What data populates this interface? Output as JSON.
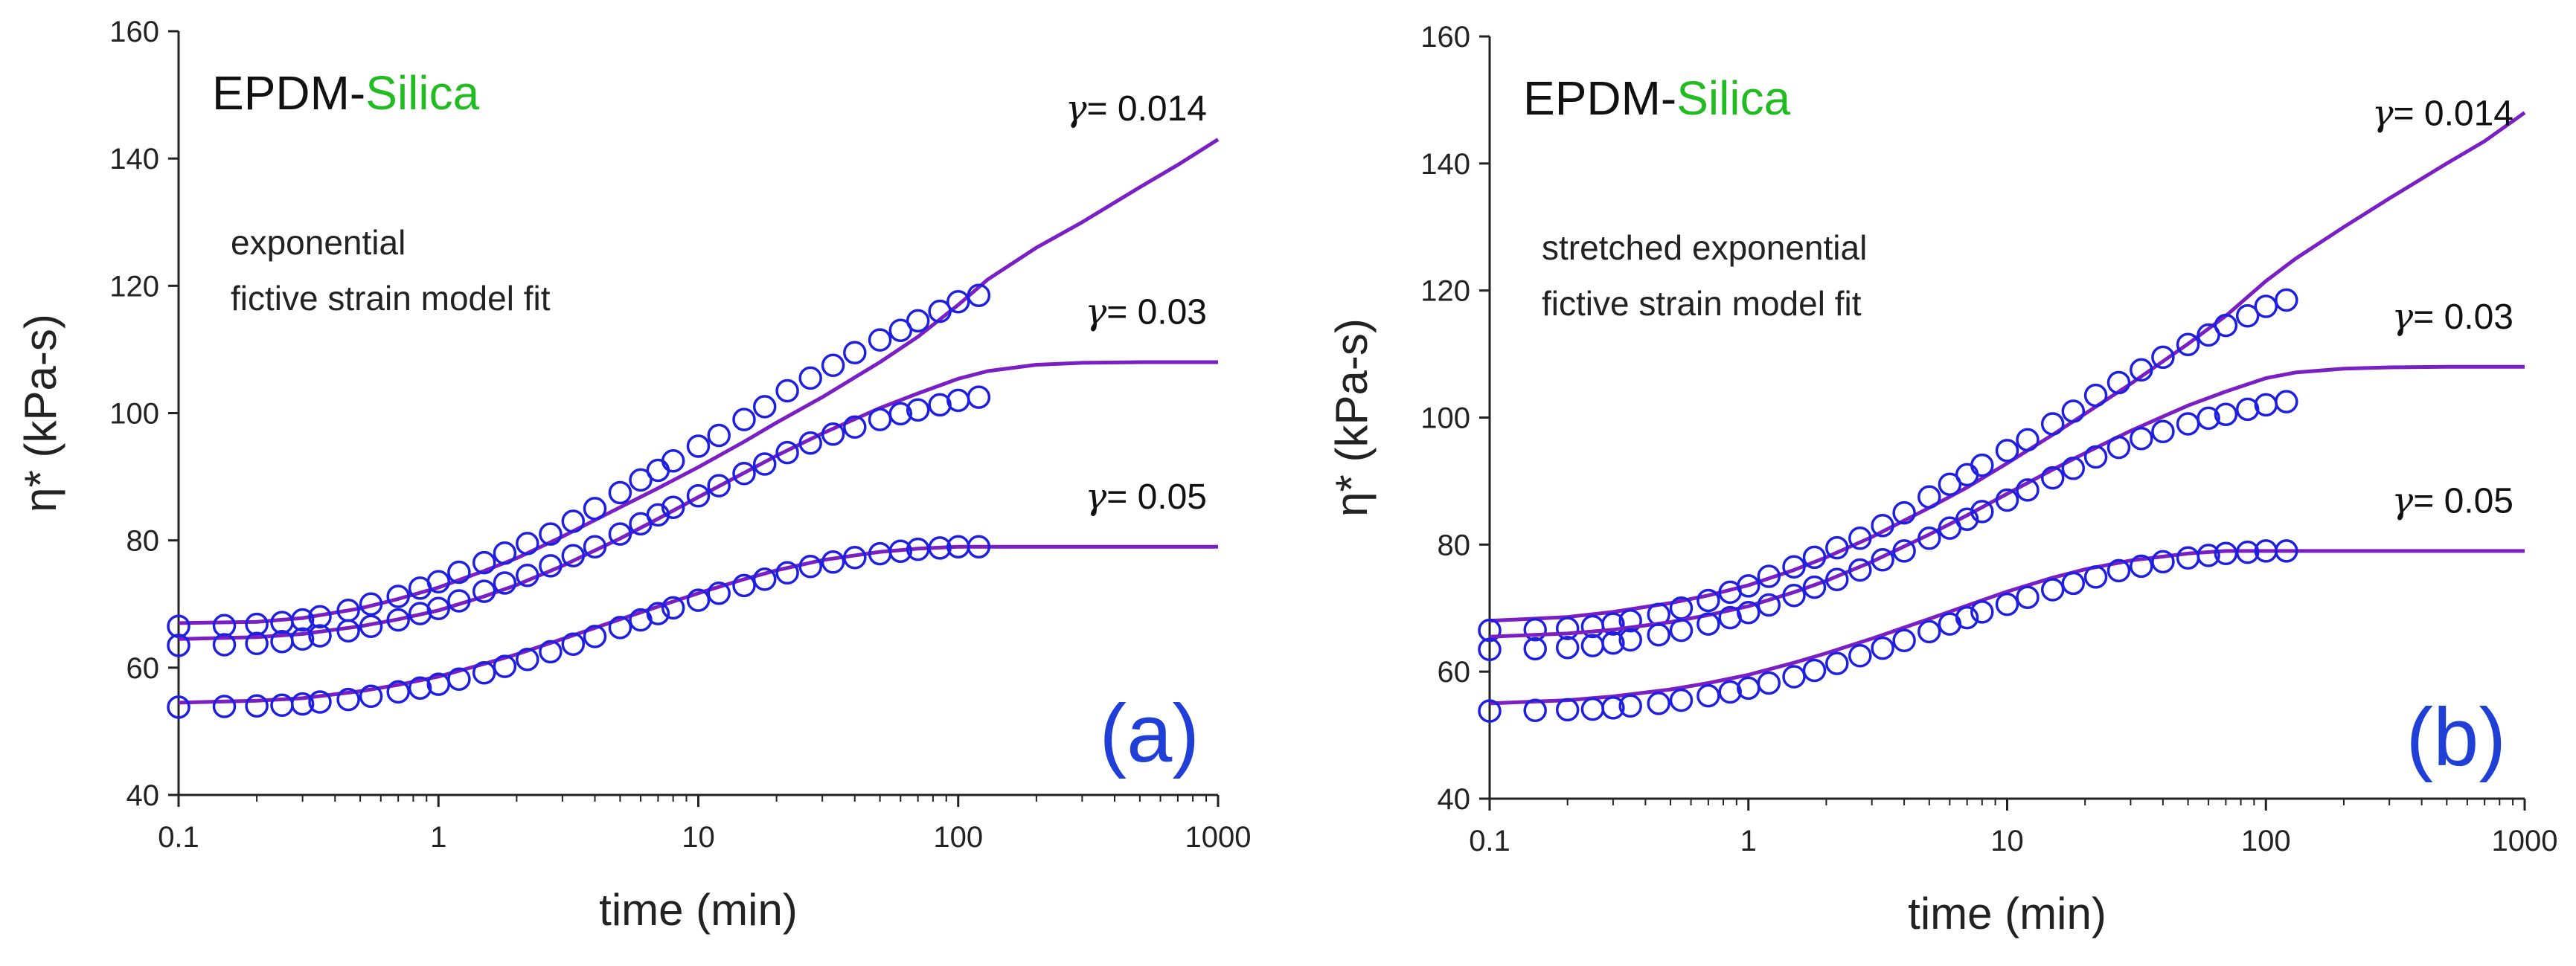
{
  "colors": {
    "data": "#1f1fe0",
    "fit": "#7a1fc4",
    "silica": "#22bb22",
    "panel_label": "#1f3fd6",
    "axis": "#222222"
  },
  "chart_data": [
    {
      "type": "scatter",
      "panel_label": "(a)",
      "title_prefix": "EPDM-",
      "title_highlight": "Silica",
      "annotation_lines": [
        "exponential",
        "fictive strain model fit"
      ],
      "xlabel": "time (min)",
      "ylabel": "η* (kPa-s)",
      "xscale": "log",
      "xlim": [
        0.1,
        1000
      ],
      "ylim": [
        40,
        160
      ],
      "xticks": [
        0.1,
        1,
        10,
        100,
        1000
      ],
      "xtick_labels": [
        "0.1",
        "1",
        "10",
        "100",
        "1000"
      ],
      "yticks": [
        40,
        60,
        80,
        100,
        120,
        140,
        160
      ],
      "ytick_labels": [
        "40",
        "60",
        "80",
        "100",
        "120",
        "140",
        "160"
      ],
      "series": [
        {
          "name": "γ = 0.014",
          "label_gamma": "γ",
          "label_value": "= 0.014",
          "label_anchor": [
            1000,
            146
          ],
          "points": {
            "x": [
              0.1,
              0.15,
              0.2,
              0.25,
              0.3,
              0.35,
              0.45,
              0.55,
              0.7,
              0.85,
              1,
              1.2,
              1.5,
              1.8,
              2.2,
              2.7,
              3.3,
              4,
              5,
              6,
              7,
              8,
              10,
              12,
              15,
              18,
              22,
              27,
              33,
              40,
              50,
              60,
              70,
              85,
              100,
              120
            ],
            "y": [
              66.5,
              66.6,
              66.8,
              67.1,
              67.5,
              68.0,
              69.0,
              70.0,
              71.2,
              72.5,
              73.5,
              75,
              76.5,
              78,
              79.5,
              81,
              83,
              85,
              87.5,
              89.5,
              91,
              92.5,
              94.8,
              96.5,
              99,
              101,
              103.5,
              105.5,
              107.5,
              109.5,
              111.5,
              113,
              114.5,
              116,
              117.5,
              118.5
            ]
          },
          "fit": {
            "x": [
              0.1,
              0.2,
              0.3,
              0.5,
              0.7,
              1,
              1.5,
              2,
              3,
              5,
              7,
              10,
              15,
              20,
              30,
              50,
              70,
              100,
              130,
              200,
              300,
              500,
              700,
              1000
            ],
            "y": [
              67,
              67.2,
              67.8,
              69.3,
              70.8,
              72.6,
              75.2,
              77.2,
              80.6,
              85.2,
              88.2,
              91.5,
              95.5,
              98.5,
              102.5,
              108,
              112,
              117,
              121,
              126,
              130,
              135.5,
              139,
              143
            ]
          }
        },
        {
          "name": "γ = 0.03",
          "label_gamma": "γ",
          "label_value": "= 0.03",
          "label_anchor": [
            1000,
            114
          ],
          "points": {
            "x": [
              0.1,
              0.15,
              0.2,
              0.25,
              0.3,
              0.35,
              0.45,
              0.55,
              0.7,
              0.85,
              1,
              1.2,
              1.5,
              1.8,
              2.2,
              2.7,
              3.3,
              4,
              5,
              6,
              7,
              8,
              10,
              12,
              15,
              18,
              22,
              27,
              33,
              40,
              50,
              60,
              70,
              85,
              100,
              120
            ],
            "y": [
              63.5,
              63.6,
              63.8,
              64.1,
              64.5,
              65,
              65.8,
              66.5,
              67.5,
              68.5,
              69.3,
              70.5,
              72,
              73.3,
              74.5,
              76,
              77.6,
              79,
              81,
              82.6,
              84,
              85.2,
              87,
              88.6,
              90.5,
              92,
              93.8,
              95.3,
              96.7,
              97.8,
              99,
              99.9,
              100.5,
              101.3,
              102,
              102.5
            ]
          },
          "fit": {
            "x": [
              0.1,
              0.2,
              0.3,
              0.5,
              0.7,
              1,
              1.5,
              2,
              3,
              5,
              7,
              10,
              15,
              20,
              30,
              50,
              70,
              100,
              130,
              200,
              300,
              500,
              1000
            ],
            "y": [
              64.5,
              64.8,
              65.3,
              66.5,
              67.6,
              69,
              71.2,
              73,
              76,
              80.3,
              83.4,
              86.8,
              90.6,
              93.3,
              96.8,
              100.8,
              103.1,
              105.4,
              106.6,
              107.6,
              107.9,
              108,
              108
            ]
          }
        },
        {
          "name": "γ = 0.05",
          "label_gamma": "γ",
          "label_value": "= 0.05",
          "label_anchor": [
            1000,
            85
          ],
          "points": {
            "x": [
              0.1,
              0.15,
              0.2,
              0.25,
              0.3,
              0.35,
              0.45,
              0.55,
              0.7,
              0.85,
              1,
              1.2,
              1.5,
              1.8,
              2.2,
              2.7,
              3.3,
              4,
              5,
              6,
              7,
              8,
              10,
              12,
              15,
              18,
              22,
              27,
              33,
              40,
              50,
              60,
              70,
              85,
              100,
              120
            ],
            "y": [
              53.8,
              53.9,
              54,
              54.1,
              54.3,
              54.6,
              55,
              55.5,
              56.2,
              56.8,
              57.4,
              58.2,
              59.2,
              60.2,
              61.3,
              62.5,
              63.7,
              64.9,
              66.3,
              67.5,
              68.5,
              69.4,
              70.6,
              71.7,
              72.9,
              73.9,
              74.9,
              75.9,
              76.6,
              77.3,
              77.9,
              78.3,
              78.6,
              78.8,
              79,
              79
            ]
          },
          "fit": {
            "x": [
              0.1,
              0.2,
              0.3,
              0.5,
              0.7,
              1,
              1.5,
              2,
              3,
              5,
              7,
              10,
              15,
              20,
              30,
              50,
              70,
              100,
              130,
              200,
              300,
              500,
              1000
            ],
            "y": [
              54.5,
              54.8,
              55.2,
              56.3,
              57.3,
              58.6,
              60.6,
              62.1,
              64.5,
              67.6,
              69.6,
              71.7,
              73.9,
              75.3,
              76.9,
              78.2,
              78.7,
              79,
              79,
              79,
              79,
              79,
              79
            ]
          }
        }
      ]
    },
    {
      "type": "scatter",
      "panel_label": "(b)",
      "title_prefix": "EPDM-",
      "title_highlight": "Silica",
      "annotation_lines": [
        "stretched exponential",
        "fictive strain model fit"
      ],
      "xlabel": "time (min)",
      "ylabel": "η* (kPa-s)",
      "xscale": "log",
      "xlim": [
        0.1,
        1000
      ],
      "ylim": [
        40,
        160
      ],
      "xticks": [
        0.1,
        1,
        10,
        100,
        1000
      ],
      "xtick_labels": [
        "0.1",
        "1",
        "10",
        "100",
        "1000"
      ],
      "yticks": [
        40,
        60,
        80,
        100,
        120,
        140,
        160
      ],
      "ytick_labels": [
        "40",
        "60",
        "80",
        "100",
        "120",
        "140",
        "160"
      ],
      "series": [
        {
          "name": "γ = 0.014",
          "label_gamma": "γ",
          "label_value": "= 0.014",
          "label_anchor": [
            1000,
            146
          ],
          "points": {
            "x": [
              0.1,
              0.15,
              0.2,
              0.25,
              0.3,
              0.35,
              0.45,
              0.55,
              0.7,
              0.85,
              1,
              1.2,
              1.5,
              1.8,
              2.2,
              2.7,
              3.3,
              4,
              5,
              6,
              7,
              8,
              10,
              12,
              15,
              18,
              22,
              27,
              33,
              40,
              50,
              60,
              70,
              85,
              100,
              120
            ],
            "y": [
              66.5,
              66.6,
              66.8,
              67.1,
              67.5,
              68.0,
              69.0,
              70.0,
              71.2,
              72.5,
              73.5,
              75,
              76.5,
              78,
              79.5,
              81,
              83,
              85,
              87.5,
              89.5,
              91,
              92.5,
              94.8,
              96.5,
              99,
              101,
              103.5,
              105.5,
              107.5,
              109.5,
              111.5,
              113,
              114.5,
              116,
              117.5,
              118.5
            ]
          },
          "fit": {
            "x": [
              0.1,
              0.2,
              0.3,
              0.5,
              0.7,
              1,
              1.5,
              2,
              3,
              5,
              7,
              10,
              15,
              20,
              30,
              50,
              70,
              100,
              130,
              200,
              300,
              500,
              700,
              1000
            ],
            "y": [
              68,
              68.6,
              69.4,
              70.8,
              72,
              73.6,
              76,
              78,
              81.2,
              85.8,
              89,
              92.8,
              97.3,
              100.6,
              105.3,
              111.6,
              116,
              121.5,
              125,
              130,
              134.5,
              140,
              143.5,
              148
            ]
          }
        },
        {
          "name": "γ = 0.03",
          "label_gamma": "γ",
          "label_value": "= 0.03",
          "label_anchor": [
            1000,
            114
          ],
          "points": {
            "x": [
              0.1,
              0.15,
              0.2,
              0.25,
              0.3,
              0.35,
              0.45,
              0.55,
              0.7,
              0.85,
              1,
              1.2,
              1.5,
              1.8,
              2.2,
              2.7,
              3.3,
              4,
              5,
              6,
              7,
              8,
              10,
              12,
              15,
              18,
              22,
              27,
              33,
              40,
              50,
              60,
              70,
              85,
              100,
              120
            ],
            "y": [
              63.5,
              63.6,
              63.8,
              64.1,
              64.5,
              65,
              65.8,
              66.5,
              67.5,
              68.5,
              69.3,
              70.5,
              72,
              73.3,
              74.5,
              76,
              77.6,
              79,
              81,
              82.6,
              84,
              85.2,
              87,
              88.6,
              90.5,
              92,
              93.8,
              95.3,
              96.7,
              97.8,
              99,
              99.9,
              100.5,
              101.3,
              102,
              102.5
            ]
          },
          "fit": {
            "x": [
              0.1,
              0.2,
              0.3,
              0.5,
              0.7,
              1,
              1.5,
              2,
              3,
              5,
              7,
              10,
              15,
              20,
              30,
              50,
              70,
              100,
              130,
              200,
              300,
              500,
              1000
            ],
            "y": [
              65.5,
              66,
              66.6,
              67.8,
              68.9,
              70.3,
              72.5,
              74.3,
              77.3,
              81.6,
              84.6,
              88,
              91.8,
              94.4,
              97.9,
              101.9,
              104.1,
              106.2,
              107.1,
              107.7,
              107.9,
              108,
              108
            ]
          }
        },
        {
          "name": "γ = 0.05",
          "label_gamma": "γ",
          "label_value": "= 0.05",
          "label_anchor": [
            1000,
            85
          ],
          "points": {
            "x": [
              0.1,
              0.15,
              0.2,
              0.25,
              0.3,
              0.35,
              0.45,
              0.55,
              0.7,
              0.85,
              1,
              1.2,
              1.5,
              1.8,
              2.2,
              2.7,
              3.3,
              4,
              5,
              6,
              7,
              8,
              10,
              12,
              15,
              18,
              22,
              27,
              33,
              40,
              50,
              60,
              70,
              85,
              100,
              120
            ],
            "y": [
              53.8,
              53.9,
              54,
              54.1,
              54.3,
              54.6,
              55,
              55.5,
              56.2,
              56.8,
              57.4,
              58.2,
              59.2,
              60.2,
              61.3,
              62.5,
              63.7,
              64.9,
              66.3,
              67.5,
              68.5,
              69.4,
              70.6,
              71.7,
              72.9,
              73.9,
              74.9,
              75.9,
              76.6,
              77.3,
              77.9,
              78.3,
              78.6,
              78.8,
              79,
              79
            ]
          },
          "fit": {
            "x": [
              0.1,
              0.2,
              0.3,
              0.5,
              0.7,
              1,
              1.5,
              2,
              3,
              5,
              7,
              10,
              15,
              20,
              30,
              50,
              70,
              100,
              130,
              200,
              300,
              500,
              1000
            ],
            "y": [
              55,
              55.5,
              56.1,
              57.2,
              58.2,
              59.5,
              61.4,
              62.9,
              65.2,
              68.3,
              70.4,
              72.6,
              74.8,
              76.1,
              77.5,
              78.6,
              79,
              79,
              79,
              79,
              79,
              79,
              79
            ]
          }
        }
      ]
    }
  ]
}
